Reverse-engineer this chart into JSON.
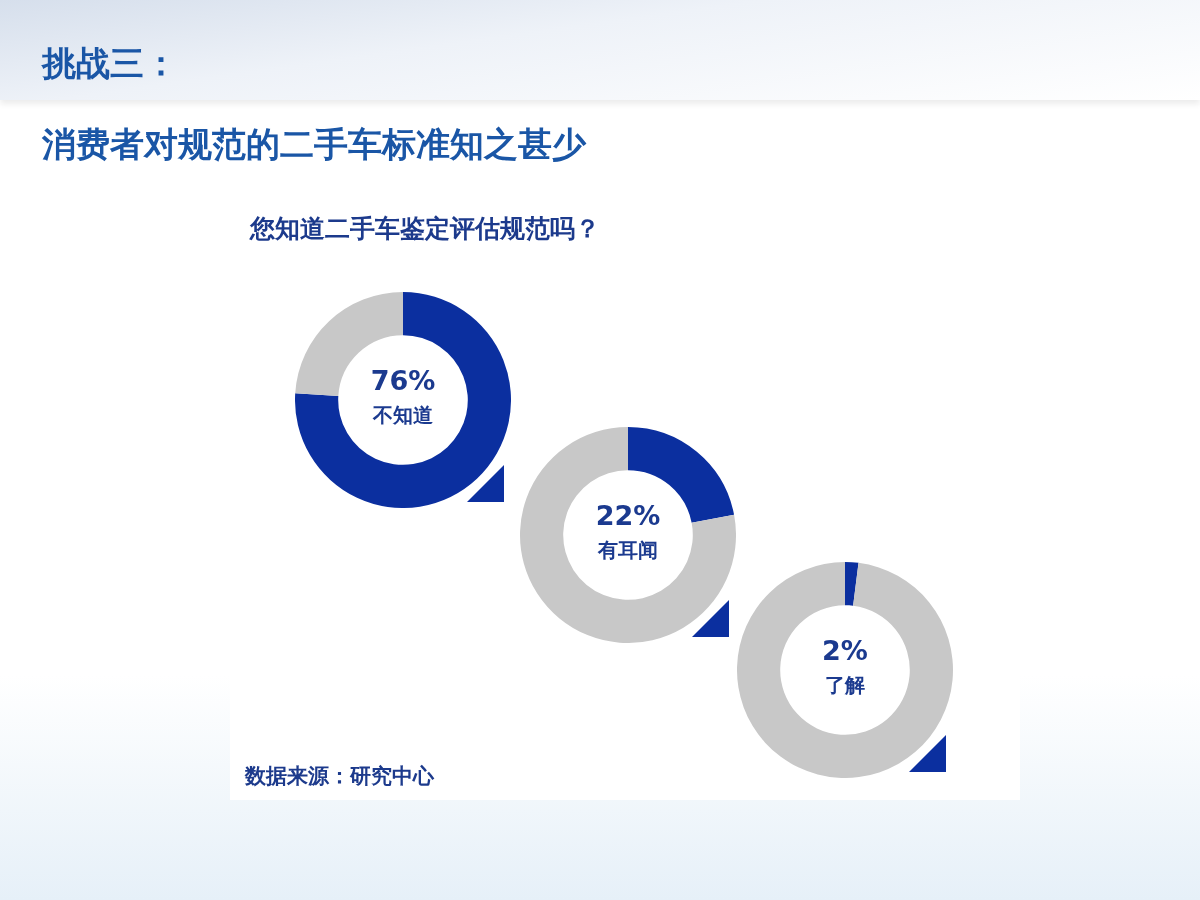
{
  "chart_data": [
    {
      "type": "other",
      "title": "挑战三：",
      "subtitle": "消费者对规范的二手车标准知之甚少",
      "annotations": [
        "数据来源：研究中心"
      ]
    },
    {
      "type": "donut",
      "title": "您知道二手车鉴定评估规范吗？",
      "categories": [
        "不知道",
        null
      ],
      "values": [
        76,
        24
      ],
      "value_labels": [
        "76%",
        null
      ],
      "colors": [
        "#0b2f9f",
        "#c8c8c8"
      ]
    },
    {
      "type": "donut",
      "categories": [
        "有耳闻",
        null
      ],
      "values": [
        22,
        78
      ],
      "value_labels": [
        "22%",
        null
      ],
      "colors": [
        "#0b2f9f",
        "#c8c8c8"
      ]
    },
    {
      "type": "donut",
      "categories": [
        "了解",
        null
      ],
      "values": [
        2,
        98
      ],
      "value_labels": [
        "2%",
        null
      ],
      "colors": [
        "#0b2f9f",
        "#c8c8c8"
      ]
    }
  ]
}
